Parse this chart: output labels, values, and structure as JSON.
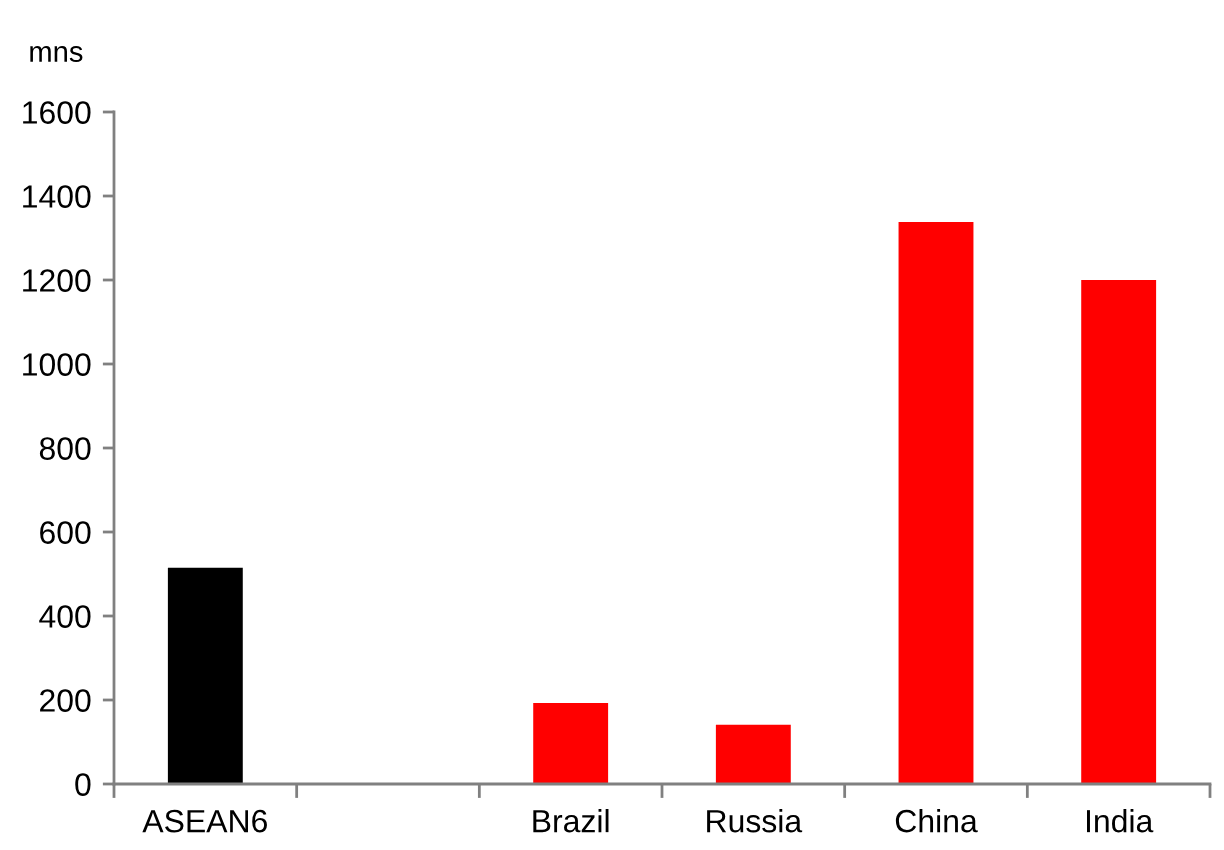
{
  "chart_data": {
    "type": "bar",
    "ylabel": "mns",
    "categories": [
      "ASEAN6",
      null,
      "Brazil",
      "Russia",
      "China",
      "India"
    ],
    "values": [
      515,
      null,
      193,
      141,
      1338,
      1200
    ],
    "colors": [
      "#000000",
      "#ff0000",
      "#ff0000",
      "#ff0000",
      "#ff0000",
      "#ff0000"
    ],
    "ylim": [
      0,
      1600
    ],
    "yticks": [
      0,
      200,
      400,
      600,
      800,
      1000,
      1200,
      1400,
      1600
    ]
  }
}
